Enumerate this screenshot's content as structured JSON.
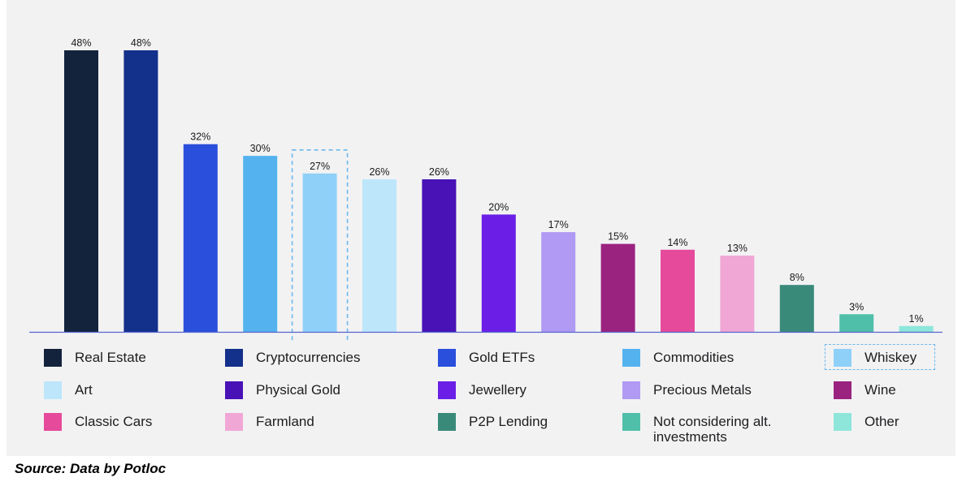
{
  "chart_data": {
    "type": "bar",
    "categories": [
      "Real Estate",
      "Cryptocurrencies",
      "Gold ETFs",
      "Commodities",
      "Whiskey",
      "Art",
      "Physical Gold",
      "Jewellery",
      "Precious Metals",
      "Wine",
      "Classic Cars",
      "Farmland",
      "P2P Lending",
      "Not considering alt. investments",
      "Other"
    ],
    "values": [
      48,
      48,
      32,
      30,
      27,
      26,
      26,
      20,
      17,
      15,
      14,
      13,
      8,
      3,
      1
    ],
    "data_labels": [
      "48%",
      "48%",
      "32%",
      "30%",
      "27%",
      "26%",
      "26%",
      "20%",
      "17%",
      "15%",
      "14%",
      "13%",
      "8%",
      "3%",
      "1%"
    ],
    "colors": [
      "#14233c",
      "#13308a",
      "#2a4fdc",
      "#54b3ef",
      "#8fd0f8",
      "#bde6fb",
      "#4812b6",
      "#6b1fe6",
      "#b09af3",
      "#9a2380",
      "#e64a9b",
      "#f1a7d6",
      "#3a8a7a",
      "#4fbfaa",
      "#8ee6da"
    ],
    "highlighted": "Whiskey",
    "highlight_color": "#6ab8ee",
    "axis_color": "#5566cc",
    "ylim": [
      0,
      50
    ],
    "title": "",
    "xlabel": "",
    "ylabel": "",
    "legend": [
      {
        "label": "Real Estate"
      },
      {
        "label": "Cryptocurrencies"
      },
      {
        "label": "Gold ETFs"
      },
      {
        "label": "Commodities"
      },
      {
        "label": "Whiskey"
      },
      {
        "label": "Art"
      },
      {
        "label": "Physical Gold"
      },
      {
        "label": "Jewellery"
      },
      {
        "label": "Precious Metals"
      },
      {
        "label": "Wine"
      },
      {
        "label": "Classic Cars"
      },
      {
        "label": "Farmland"
      },
      {
        "label": "P2P Lending"
      },
      {
        "label": "Not considering alt. investments"
      },
      {
        "label": "Other"
      }
    ]
  },
  "source": "Source: Data by Potloc"
}
